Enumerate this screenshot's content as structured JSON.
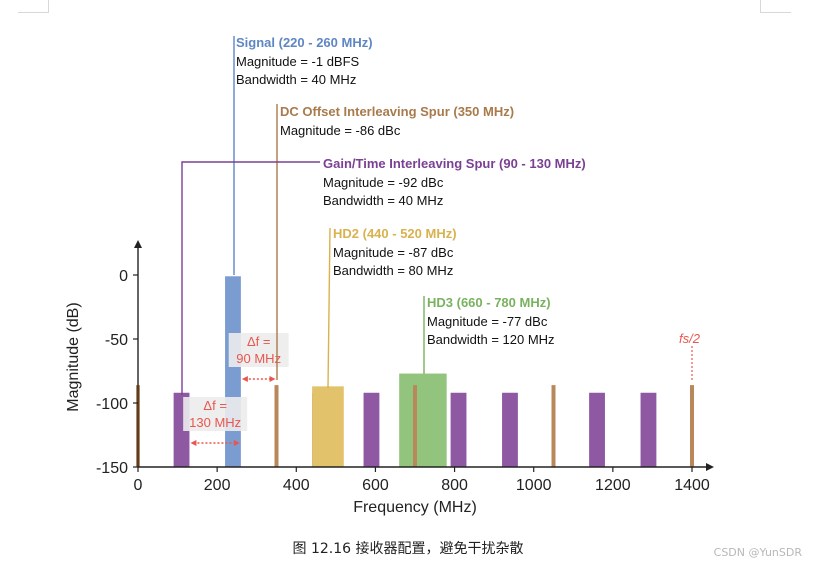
{
  "chart_data": {
    "type": "bar",
    "xlabel": "Frequency (MHz)",
    "ylabel": "Magnitude (dB)",
    "xlim": [
      0,
      1400
    ],
    "ylim": [
      -150,
      0
    ],
    "xticks": [
      0,
      200,
      400,
      600,
      800,
      1000,
      1200,
      1400
    ],
    "yticks": [
      0,
      -50,
      -100,
      -150
    ],
    "fs_label": "fs/2",
    "series": [
      {
        "name": "Signal (220 - 260 MHz)",
        "color": "#7b9cd0",
        "bars": [
          {
            "x0": 220,
            "x1": 260,
            "y": -1
          }
        ]
      },
      {
        "name": "Gain/Time Interleaving Spur (90 - 130 MHz)",
        "color": "#8e58a3",
        "bars": [
          {
            "x0": 90,
            "x1": 130,
            "y": -92
          },
          {
            "x0": 440,
            "x1": 480,
            "y": -92
          },
          {
            "x0": 570,
            "x1": 610,
            "y": -92
          },
          {
            "x0": 790,
            "x1": 830,
            "y": -92
          },
          {
            "x0": 920,
            "x1": 960,
            "y": -92
          },
          {
            "x0": 1140,
            "x1": 1180,
            "y": -92
          },
          {
            "x0": 1270,
            "x1": 1310,
            "y": -92
          }
        ]
      },
      {
        "name": "HD2 (440 - 520 MHz)",
        "color": "#e2c26a",
        "bars": [
          {
            "x0": 440,
            "x1": 520,
            "y": -87
          }
        ]
      },
      {
        "name": "HD3 (660 - 780 MHz)",
        "color": "#93c47d",
        "bars": [
          {
            "x0": 660,
            "x1": 780,
            "y": -77
          }
        ]
      },
      {
        "name": "DC Offset Interleaving Spur (350 MHz)",
        "color": "#b8875a",
        "lines": [
          0,
          350,
          700,
          1050,
          1400
        ],
        "y": -86
      }
    ]
  },
  "annotations": {
    "signal": {
      "title": "Signal (220 - 260 MHz)",
      "lines": [
        "Magnitude = -1 dBFS",
        "Bandwidth = 40 MHz"
      ],
      "color": "#5f86c4"
    },
    "dc": {
      "title": "DC Offset Interleaving Spur (350 MHz)",
      "lines": [
        "Magnitude = -86 dBc"
      ],
      "color": "#a87a4c"
    },
    "gain": {
      "title": "Gain/Time Interleaving Spur (90 - 130 MHz)",
      "lines": [
        "Magnitude = -92 dBc",
        "Bandwidth = 40 MHz"
      ],
      "color": "#7b4094"
    },
    "hd2": {
      "title": "HD2 (440 - 520 MHz)",
      "lines": [
        "Magnitude = -87 dBc",
        "Bandwidth = 80 MHz"
      ],
      "color": "#d9b24f"
    },
    "hd3": {
      "title": "HD3 (660 - 780 MHz)",
      "lines": [
        "Magnitude = -77 dBc",
        "Bandwidth = 120 MHz"
      ],
      "color": "#79b25f"
    },
    "delta90": {
      "text": [
        "Δf =",
        "90 MHz"
      ]
    },
    "delta130": {
      "text": [
        "Δf =",
        "130 MHz"
      ]
    }
  },
  "caption": "图 12.16 接收器配置，避免干扰杂散",
  "watermark": "CSDN @YunSDR"
}
